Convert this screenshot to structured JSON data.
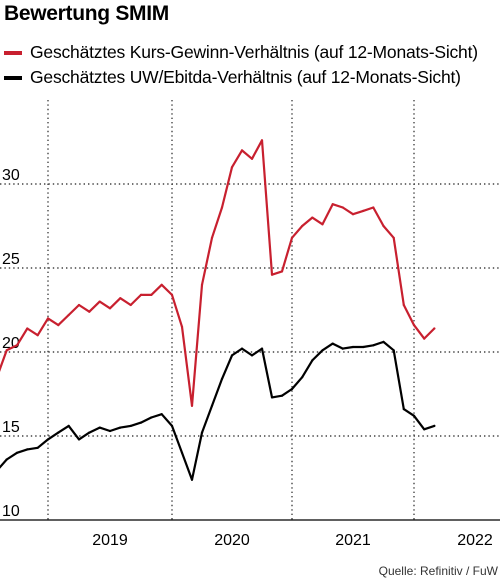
{
  "header": {
    "title": "Bewertung SMIM"
  },
  "legend": [
    {
      "label": "Geschätztes Kurs-Gewinn-Verhältnis (auf 12-Monats-Sicht)",
      "color": "#c8202f"
    },
    {
      "label": "Geschätztes UW/Ebitda-Verhältnis (auf 12-Monats-Sicht)",
      "color": "#000000"
    }
  ],
  "footer": {
    "source": "Quelle: Refinitiv / FuW"
  },
  "chart_data": {
    "type": "line",
    "title": "Bewertung SMIM",
    "x_axis": {
      "ticks": [
        "2019",
        "2020",
        "2021",
        "2022"
      ],
      "range": [
        "2018-08",
        "2022-04"
      ]
    },
    "y_axis": {
      "ticks": [
        10,
        15,
        20,
        25,
        30
      ],
      "range": [
        10,
        35
      ]
    },
    "grid": {
      "vertical": "dotted",
      "horizontal": "dotted"
    },
    "series": [
      {
        "name": "Geschätztes Kurs-Gewinn-Verhältnis (auf 12-Monats-Sicht)",
        "color": "#c8202f",
        "x": [
          "2018-08",
          "2018-09",
          "2018-10",
          "2018-11",
          "2018-12",
          "2019-01",
          "2019-02",
          "2019-03",
          "2019-04",
          "2019-05",
          "2019-06",
          "2019-07",
          "2019-08",
          "2019-09",
          "2019-10",
          "2019-11",
          "2019-12",
          "2020-01",
          "2020-02",
          "2020-03",
          "2020-04",
          "2020-05",
          "2020-06",
          "2020-07",
          "2020-08",
          "2020-09",
          "2020-10",
          "2020-11",
          "2020-12",
          "2021-01",
          "2021-02",
          "2021-03",
          "2021-04",
          "2021-05",
          "2021-06",
          "2021-07",
          "2021-08",
          "2021-09",
          "2021-10",
          "2021-11",
          "2021-12",
          "2022-01",
          "2022-02",
          "2022-03"
        ],
        "y": [
          18.4,
          20.1,
          20.4,
          21.4,
          21.0,
          22.0,
          21.6,
          22.2,
          22.8,
          22.4,
          23.0,
          22.6,
          23.2,
          22.8,
          23.4,
          23.4,
          24.0,
          23.4,
          21.5,
          16.8,
          24.0,
          26.8,
          28.6,
          31.0,
          32.0,
          31.5,
          32.6,
          24.6,
          24.8,
          26.8,
          27.5,
          28.0,
          27.6,
          28.8,
          28.6,
          28.2,
          28.4,
          28.6,
          27.5,
          26.8,
          22.8,
          21.6,
          20.8,
          21.4
        ]
      },
      {
        "name": "Geschätztes UW/Ebitda-Verhältnis (auf 12-Monats-Sicht)",
        "color": "#000000",
        "x": [
          "2018-08",
          "2018-09",
          "2018-10",
          "2018-11",
          "2018-12",
          "2019-01",
          "2019-02",
          "2019-03",
          "2019-04",
          "2019-05",
          "2019-06",
          "2019-07",
          "2019-08",
          "2019-09",
          "2019-10",
          "2019-11",
          "2019-12",
          "2020-01",
          "2020-02",
          "2020-03",
          "2020-04",
          "2020-05",
          "2020-06",
          "2020-07",
          "2020-08",
          "2020-09",
          "2020-10",
          "2020-11",
          "2020-12",
          "2021-01",
          "2021-02",
          "2021-03",
          "2021-04",
          "2021-05",
          "2021-06",
          "2021-07",
          "2021-08",
          "2021-09",
          "2021-10",
          "2021-11",
          "2021-12",
          "2022-01",
          "2022-02",
          "2022-03"
        ],
        "y": [
          12.9,
          13.6,
          14.0,
          14.2,
          14.3,
          14.8,
          15.2,
          15.6,
          14.8,
          15.2,
          15.5,
          15.3,
          15.5,
          15.6,
          15.8,
          16.1,
          16.3,
          15.6,
          14.0,
          12.4,
          15.2,
          16.8,
          18.4,
          19.8,
          20.2,
          19.8,
          20.2,
          17.3,
          17.4,
          17.8,
          18.5,
          19.5,
          20.1,
          20.5,
          20.2,
          20.3,
          20.3,
          20.4,
          20.6,
          20.1,
          16.6,
          16.2,
          15.4,
          15.6
        ]
      }
    ]
  }
}
